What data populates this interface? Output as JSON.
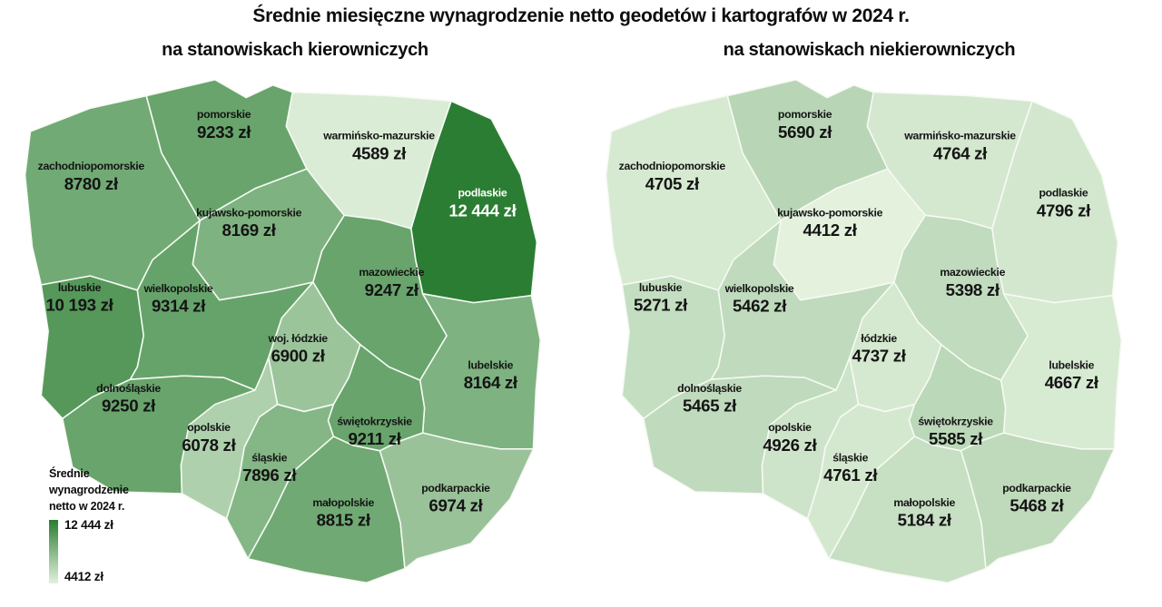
{
  "title": "Średnie miesięczne wynagrodzenie netto geodetów i kartografów w 2024 r.",
  "maps": [
    {
      "id": "manager",
      "subtitle": "na stanowiskach kierowniczych"
    },
    {
      "id": "staff",
      "subtitle": "na stanowiskach niekierowniczych"
    }
  ],
  "legend": {
    "title_lines": [
      "Średnie",
      "wynagrodzenie",
      "netto w 2024 r."
    ],
    "max_label": "12 444 zł",
    "min_label": "4412 zł"
  },
  "colors": {
    "scale_min": "#e3f1dd",
    "scale_max": "#2a7d33",
    "border": "#f6faf3",
    "background": "#ffffff",
    "label_dark": "#141414",
    "label_light": "#ffffff"
  },
  "scale": {
    "min": 4412,
    "max": 12444
  },
  "regions": [
    {
      "id": "pomorskie",
      "name": "pomorskie",
      "manager_value": "9233 zł",
      "manager_num": 9233,
      "staff_value": "5690 zł",
      "staff_num": 5690
    },
    {
      "id": "zachodniopomorskie",
      "name": "zachodniopomorskie",
      "manager_value": "8780 zł",
      "manager_num": 8780,
      "staff_value": "4705 zł",
      "staff_num": 4705
    },
    {
      "id": "warminsko-mazurskie",
      "name": "warmińsko-mazurskie",
      "manager_value": "4589 zł",
      "manager_num": 4589,
      "staff_value": "4764 zł",
      "staff_num": 4764
    },
    {
      "id": "podlaskie",
      "name": "podlaskie",
      "manager_value": "12 444 zł",
      "manager_num": 12444,
      "staff_value": "4796 zł",
      "staff_num": 4796
    },
    {
      "id": "kujawsko-pomorskie",
      "name": "kujawsko-pomorskie",
      "manager_value": "8169 zł",
      "manager_num": 8169,
      "staff_value": "4412 zł",
      "staff_num": 4412
    },
    {
      "id": "mazowieckie",
      "name": "mazowieckie",
      "manager_value": "9247 zł",
      "manager_num": 9247,
      "staff_value": "5398 zł",
      "staff_num": 5398
    },
    {
      "id": "lubuskie",
      "name": "lubuskie",
      "manager_value": "10 193 zł",
      "manager_num": 10193,
      "staff_value": "5271 zł",
      "staff_num": 5271
    },
    {
      "id": "wielkopolskie",
      "name": "wielkopolskie",
      "manager_value": "9314 zł",
      "manager_num": 9314,
      "staff_value": "5462 zł",
      "staff_num": 5462
    },
    {
      "id": "lodzkie",
      "name": "łódzkie",
      "name_manager": "woj. łódzkie",
      "manager_value": "6900 zł",
      "manager_num": 6900,
      "staff_value": "4737 zł",
      "staff_num": 4737
    },
    {
      "id": "lubelskie",
      "name": "lubelskie",
      "manager_value": "8164 zł",
      "manager_num": 8164,
      "staff_value": "4667 zł",
      "staff_num": 4667
    },
    {
      "id": "dolnoslaskie",
      "name": "dolnośląskie",
      "manager_value": "9250 zł",
      "manager_num": 9250,
      "staff_value": "5465 zł",
      "staff_num": 5465
    },
    {
      "id": "opolskie",
      "name": "opolskie",
      "manager_value": "6078 zł",
      "manager_num": 6078,
      "staff_value": "4926 zł",
      "staff_num": 4926
    },
    {
      "id": "slaskie",
      "name": "śląskie",
      "manager_value": "7896 zł",
      "manager_num": 7896,
      "staff_value": "4761 zł",
      "staff_num": 4761
    },
    {
      "id": "swietokrzyskie",
      "name": "świętokrzyskie",
      "manager_value": "9211 zł",
      "manager_num": 9211,
      "staff_value": "5585 zł",
      "staff_num": 5585
    },
    {
      "id": "malopolskie",
      "name": "małopolskie",
      "manager_value": "8815 zł",
      "manager_num": 8815,
      "staff_value": "5184 zł",
      "staff_num": 5184
    },
    {
      "id": "podkarpackie",
      "name": "podkarpackie",
      "manager_value": "6974 zł",
      "manager_num": 6974,
      "staff_value": "5468 zł",
      "staff_num": 5468
    }
  ],
  "chart_data": {
    "type": "choropleth",
    "title": "Średnie miesięczne wynagrodzenie netto geodetów i kartografów w 2024 r.",
    "unit": "zł",
    "categories": [
      "pomorskie",
      "zachodniopomorskie",
      "warmińsko-mazurskie",
      "podlaskie",
      "kujawsko-pomorskie",
      "mazowieckie",
      "lubuskie",
      "wielkopolskie",
      "łódzkie",
      "lubelskie",
      "dolnośląskie",
      "opolskie",
      "śląskie",
      "świętokrzyskie",
      "małopolskie",
      "podkarpackie"
    ],
    "series": [
      {
        "name": "na stanowiskach kierowniczych",
        "values": [
          9233,
          8780,
          4589,
          12444,
          8169,
          9247,
          10193,
          9314,
          6900,
          8164,
          9250,
          6078,
          7896,
          9211,
          8815,
          6974
        ]
      },
      {
        "name": "na stanowiskach niekierowniczych",
        "values": [
          5690,
          4705,
          4764,
          4796,
          4412,
          5398,
          5271,
          5462,
          4737,
          4667,
          5465,
          4926,
          4761,
          5585,
          5184,
          5468
        ]
      }
    ],
    "legend": {
      "title": "Średnie wynagrodzenie netto w 2024 r.",
      "range": [
        4412,
        12444
      ],
      "position": "bottom-left"
    },
    "color_scale": {
      "min_color": "#e3f1dd",
      "max_color": "#2a7d33"
    }
  }
}
